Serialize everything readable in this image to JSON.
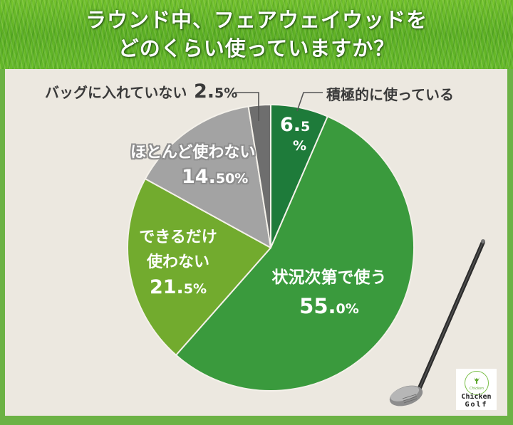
{
  "header": {
    "title_line1": "ラウンド中、フェアウェイウッドを",
    "title_line2": "どのくらい使っていますか？"
  },
  "labels": {
    "actively": {
      "name": "積極的に使っている",
      "value_int": "6.",
      "value_dec": "5",
      "unit": "%"
    },
    "depends": {
      "name": "状況次第で使う",
      "value_int": "55.",
      "value_dec": "0%"
    },
    "avoid": {
      "name_line1": "できるだけ",
      "name_line2": "使わない",
      "value_int": "21.",
      "value_dec": "5%"
    },
    "rarely": {
      "name": "ほとんど使わない",
      "value_int": "14.",
      "value_dec": "50%"
    },
    "not_in_bag": {
      "name": "バッグに入れていない",
      "value_int": "2.",
      "value_dec": "5%"
    }
  },
  "logo": {
    "line1": "Chicken",
    "line2": "Golf",
    "icon": "chicken-tee-icon"
  },
  "decoration": {
    "icon": "golf-club-fairway-wood-icon"
  },
  "colors": {
    "frame": "#6cb245",
    "background": "#ece8e0",
    "actively": "#1e7b3a",
    "depends": "#3a9a3d",
    "avoid": "#72ab2e",
    "rarely": "#a3a3a3",
    "not_in_bag": "#6e6e6e"
  },
  "chart_data": {
    "type": "pie",
    "title": "ラウンド中、フェアウェイウッドをどのくらい使っていますか？",
    "categories": [
      "積極的に使っている",
      "状況次第で使う",
      "できるだけ使わない",
      "ほとんど使わない",
      "バッグに入れていない"
    ],
    "values": [
      6.5,
      55.0,
      21.5,
      14.5,
      2.5
    ],
    "unit": "%",
    "start_angle": "12 o'clock",
    "direction": "clockwise",
    "colors": [
      "#1e7b3a",
      "#3a9a3d",
      "#72ab2e",
      "#a3a3a3",
      "#6e6e6e"
    ],
    "legend": "none (direct labels)"
  }
}
